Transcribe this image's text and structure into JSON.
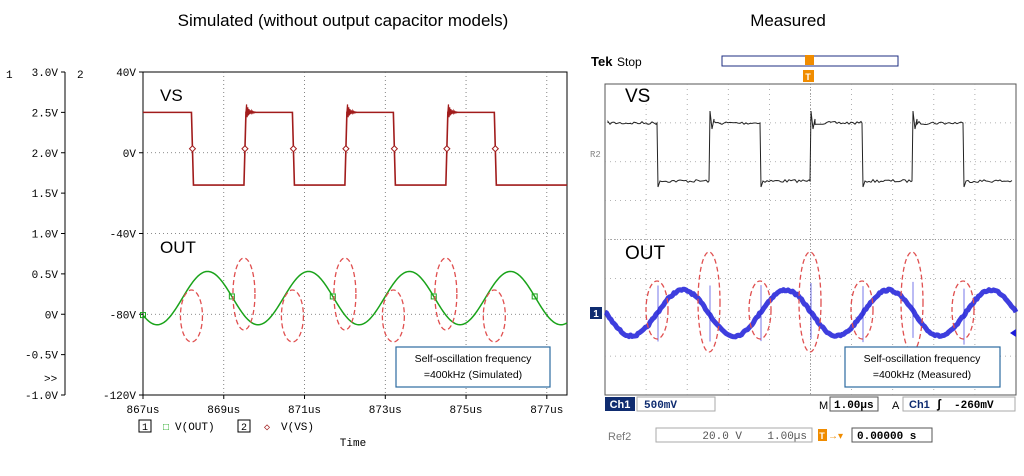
{
  "titles": {
    "left": "Simulated (without output capacitor models)",
    "right": "Measured"
  },
  "sim": {
    "axis_left_number": "1",
    "axis_right_number": "2",
    "left_ticks": [
      "3.0V",
      "2.5V",
      "2.0V",
      "1.5V",
      "1.0V",
      "0.5V",
      "0V",
      "-0.5V",
      "-1.0V"
    ],
    "right_ticks": [
      "40V",
      "0V",
      "-40V",
      "-80V",
      "-120V"
    ],
    "overflow_marker": ">>",
    "x_ticks": [
      "867us",
      "869us",
      "871us",
      "873us",
      "875us",
      "877us"
    ],
    "xlabel": "Time",
    "label_vs": "VS",
    "label_out": "OUT",
    "legend": [
      {
        "num": "1",
        "marker": "□",
        "name": "V(OUT)",
        "color": "#1aa31a"
      },
      {
        "num": "2",
        "marker": "◇",
        "name": "V(VS)",
        "color": "#a11c1c"
      }
    ],
    "note_line1": "Self-oscillation frequency",
    "note_line2": "=400kHz (Simulated)"
  },
  "meas": {
    "brand": "Tek",
    "state": "Stop",
    "trigger_marker": "T",
    "ref_marker": "R2",
    "ch1_marker": "1",
    "label_vs": "VS",
    "label_out": "OUT",
    "note_line1": "Self-oscillation frequency",
    "note_line2": "=400kHz (Measured)",
    "ch1_label": "Ch1",
    "ch1_scale": "500mV",
    "m_label": "M",
    "timebase": "1.00µs",
    "trig_mode": "A",
    "trig_ch": "Ch1",
    "trig_slope": "ʃ",
    "trig_level": "-260mV",
    "ref2_label": "Ref2",
    "ref2_volt": "20.0 V",
    "ref2_time": "1.00µs",
    "t_marker": "T",
    "arrow_marker": "→▾",
    "ref2_pos": "0.00000 s"
  },
  "colors": {
    "vs_sim": "#a11c1c",
    "out_sim": "#1aa31a",
    "ellipse": "#e05050",
    "trace_meas_vs": "#222222",
    "trace_meas_out": "#1c1cd8",
    "note_border": "#2c6aa0",
    "scope_label_bg": "#0f2c70",
    "trigger_orange": "#f08c00"
  },
  "chart_data": [
    {
      "type": "line",
      "title": "Simulated (without output capacitor models)",
      "xlabel": "Time",
      "x_unit": "us",
      "xlim": [
        867,
        877.5
      ],
      "x_ticks": [
        867,
        869,
        871,
        873,
        875,
        877
      ],
      "axes": {
        "left": {
          "ylim": [
            -1.0,
            3.0
          ],
          "ticks": [
            3.0,
            2.5,
            2.0,
            1.5,
            1.0,
            0.5,
            0,
            -0.5,
            -1.0
          ],
          "unit": "V"
        },
        "right": {
          "ylim": [
            -120,
            40
          ],
          "ticks": [
            40,
            0,
            -40,
            -80,
            -120
          ],
          "unit": "V"
        }
      },
      "grid": true,
      "series": [
        {
          "name": "V(VS)",
          "axis": "right",
          "kind": "square",
          "high": 20,
          "low": -16,
          "period_us": 2.5,
          "rising_edges_us": [
            869.5,
            872.0,
            874.5
          ],
          "falling_edges_us": [
            868.2,
            870.7,
            873.2,
            875.7
          ],
          "end_us": 877.5
        },
        {
          "name": "V(OUT)",
          "axis": "left",
          "kind": "sine",
          "frequency_khz": 400,
          "offset_v": 0.2,
          "amplitude_v": 0.33,
          "peak_times_us": [
            868.6,
            871.1,
            873.6,
            876.1
          ]
        }
      ],
      "annotations": [
        {
          "text": "VS",
          "near_series": "V(VS)"
        },
        {
          "text": "OUT",
          "near_series": "V(OUT)"
        },
        {
          "text": "Self-oscillation frequency =400kHz (Simulated)"
        }
      ]
    },
    {
      "type": "line",
      "title": "Measured",
      "x_per_div_us": 1.0,
      "ch1_volts_per_div": 0.5,
      "ref2_volts_per_div": 20.0,
      "trigger_level_mv": -260,
      "series": [
        {
          "name": "VS",
          "source": "Ref2",
          "kind": "square",
          "frequency_khz": 400
        },
        {
          "name": "OUT",
          "source": "Ch1",
          "kind": "sine",
          "frequency_khz": 400
        }
      ],
      "annotations": [
        {
          "text": "VS"
        },
        {
          "text": "OUT"
        },
        {
          "text": "Self-oscillation frequency =400kHz (Measured)"
        }
      ]
    }
  ]
}
